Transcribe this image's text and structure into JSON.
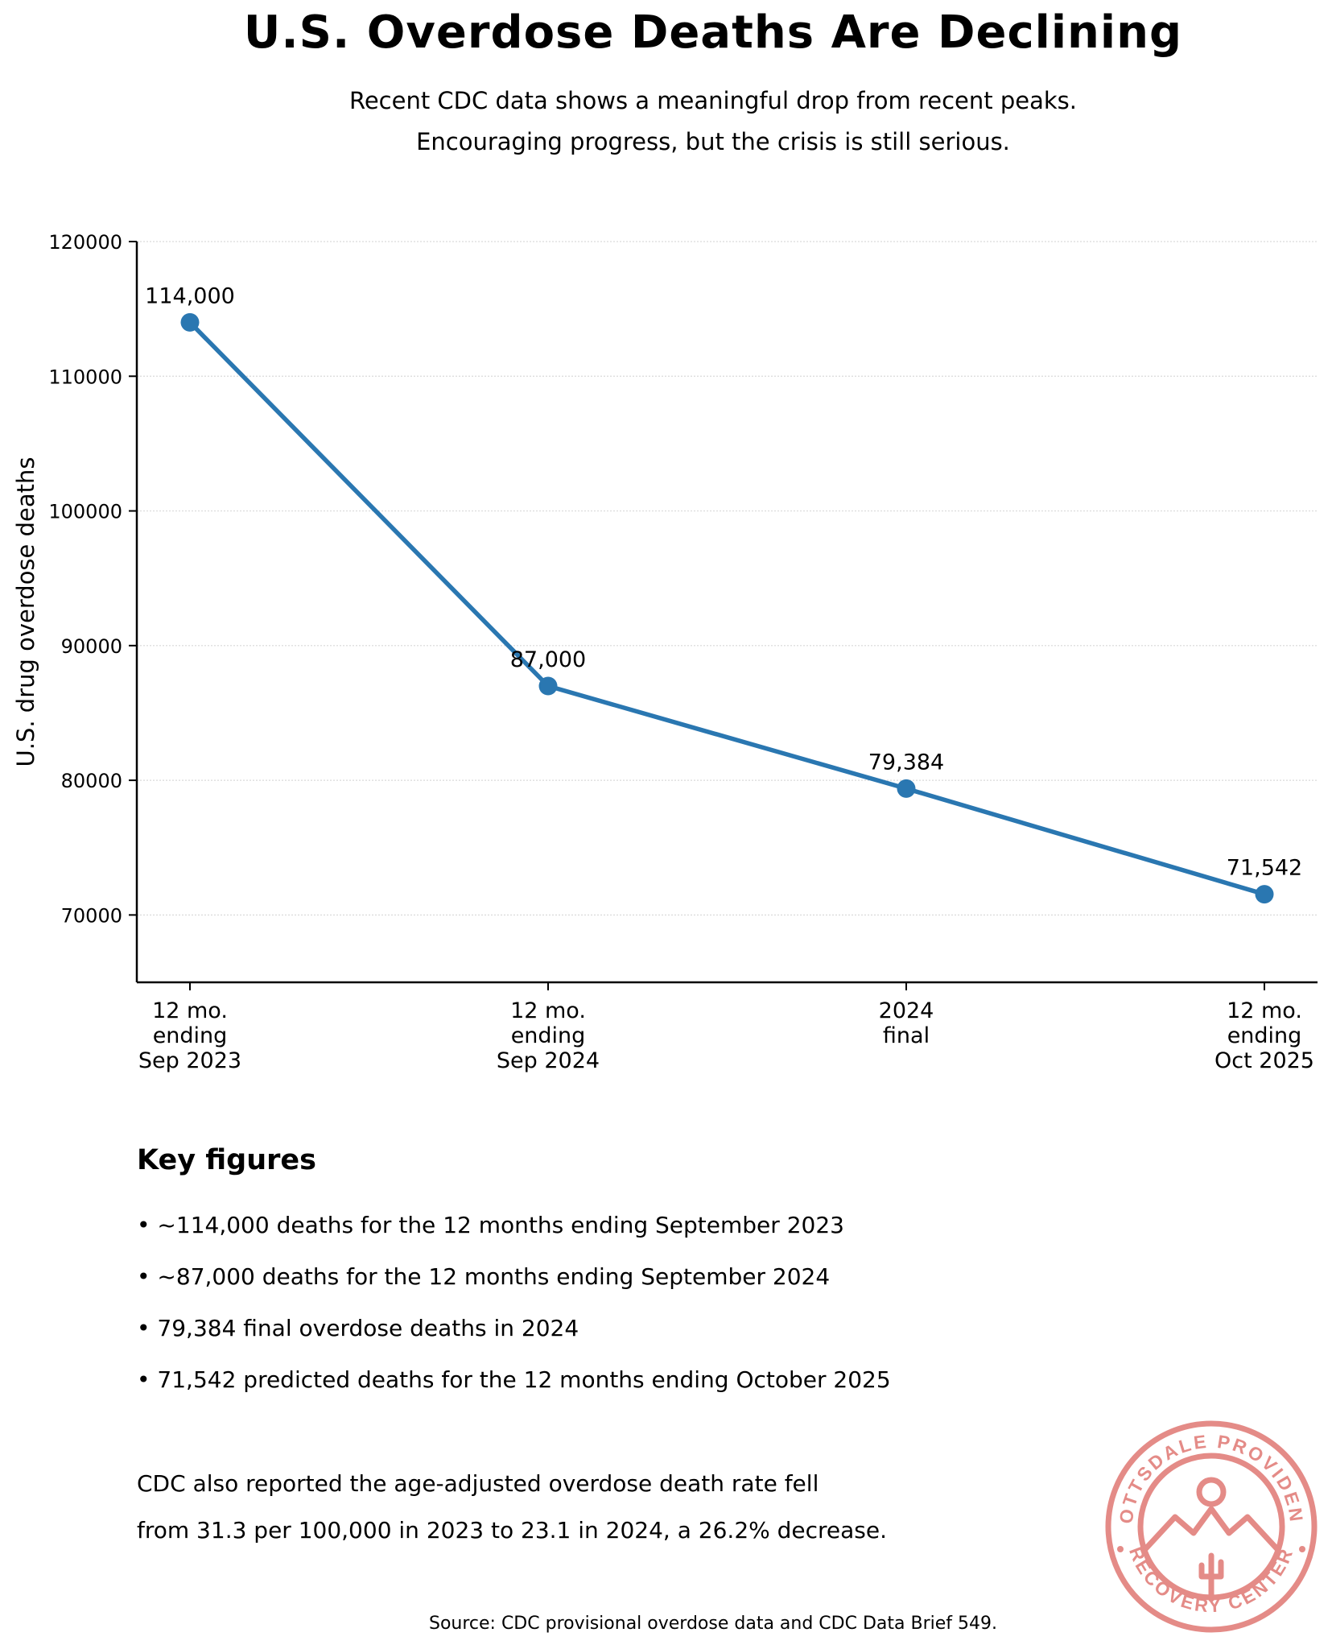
{
  "header": {
    "title": "U.S. Overdose Deaths Are Declining",
    "subtitle_lines": [
      "Recent CDC data shows a meaningful drop from recent peaks.",
      "Encouraging progress, but the crisis is still serious."
    ]
  },
  "chart_data": {
    "type": "line",
    "ylabel": "U.S. drug overdose deaths",
    "xlabel": "",
    "ylim": [
      65000,
      120000
    ],
    "yticks": [
      70000,
      80000,
      90000,
      100000,
      110000,
      120000
    ],
    "grid": "horizontal dotted",
    "legend": "none",
    "color": "#2a77b1",
    "categories": [
      [
        "12 mo.",
        "ending",
        "Sep 2023"
      ],
      [
        "12 mo.",
        "ending",
        "Sep 2024"
      ],
      [
        "2024",
        "final"
      ],
      [
        "12 mo.",
        "ending",
        "Oct 2025"
      ]
    ],
    "values": [
      114000,
      87000,
      79384,
      71542
    ],
    "data_labels": [
      "114,000",
      "87,000",
      "79,384",
      "71,542"
    ]
  },
  "key_figures": {
    "heading": "Key figures",
    "items": [
      "• ~114,000 deaths for the 12 months ending September 2023",
      "• ~87,000 deaths for the 12 months ending September 2024",
      "• 79,384 final overdose deaths in 2024",
      "• 71,542 predicted deaths for the 12 months ending October 2025"
    ]
  },
  "note": {
    "lines": [
      "CDC also reported the age-adjusted overdose death rate fell",
      "from 31.3 per 100,000 in 2023 to 23.1 in 2024, a 26.2% decrease."
    ]
  },
  "source": "Source: CDC provisional overdose data and CDC Data Brief 549.",
  "logo": {
    "top_text": "SCOTTSDALE PROVIDENCE",
    "bottom_text": "RECOVERY CENTER",
    "color": "#e48b87"
  }
}
